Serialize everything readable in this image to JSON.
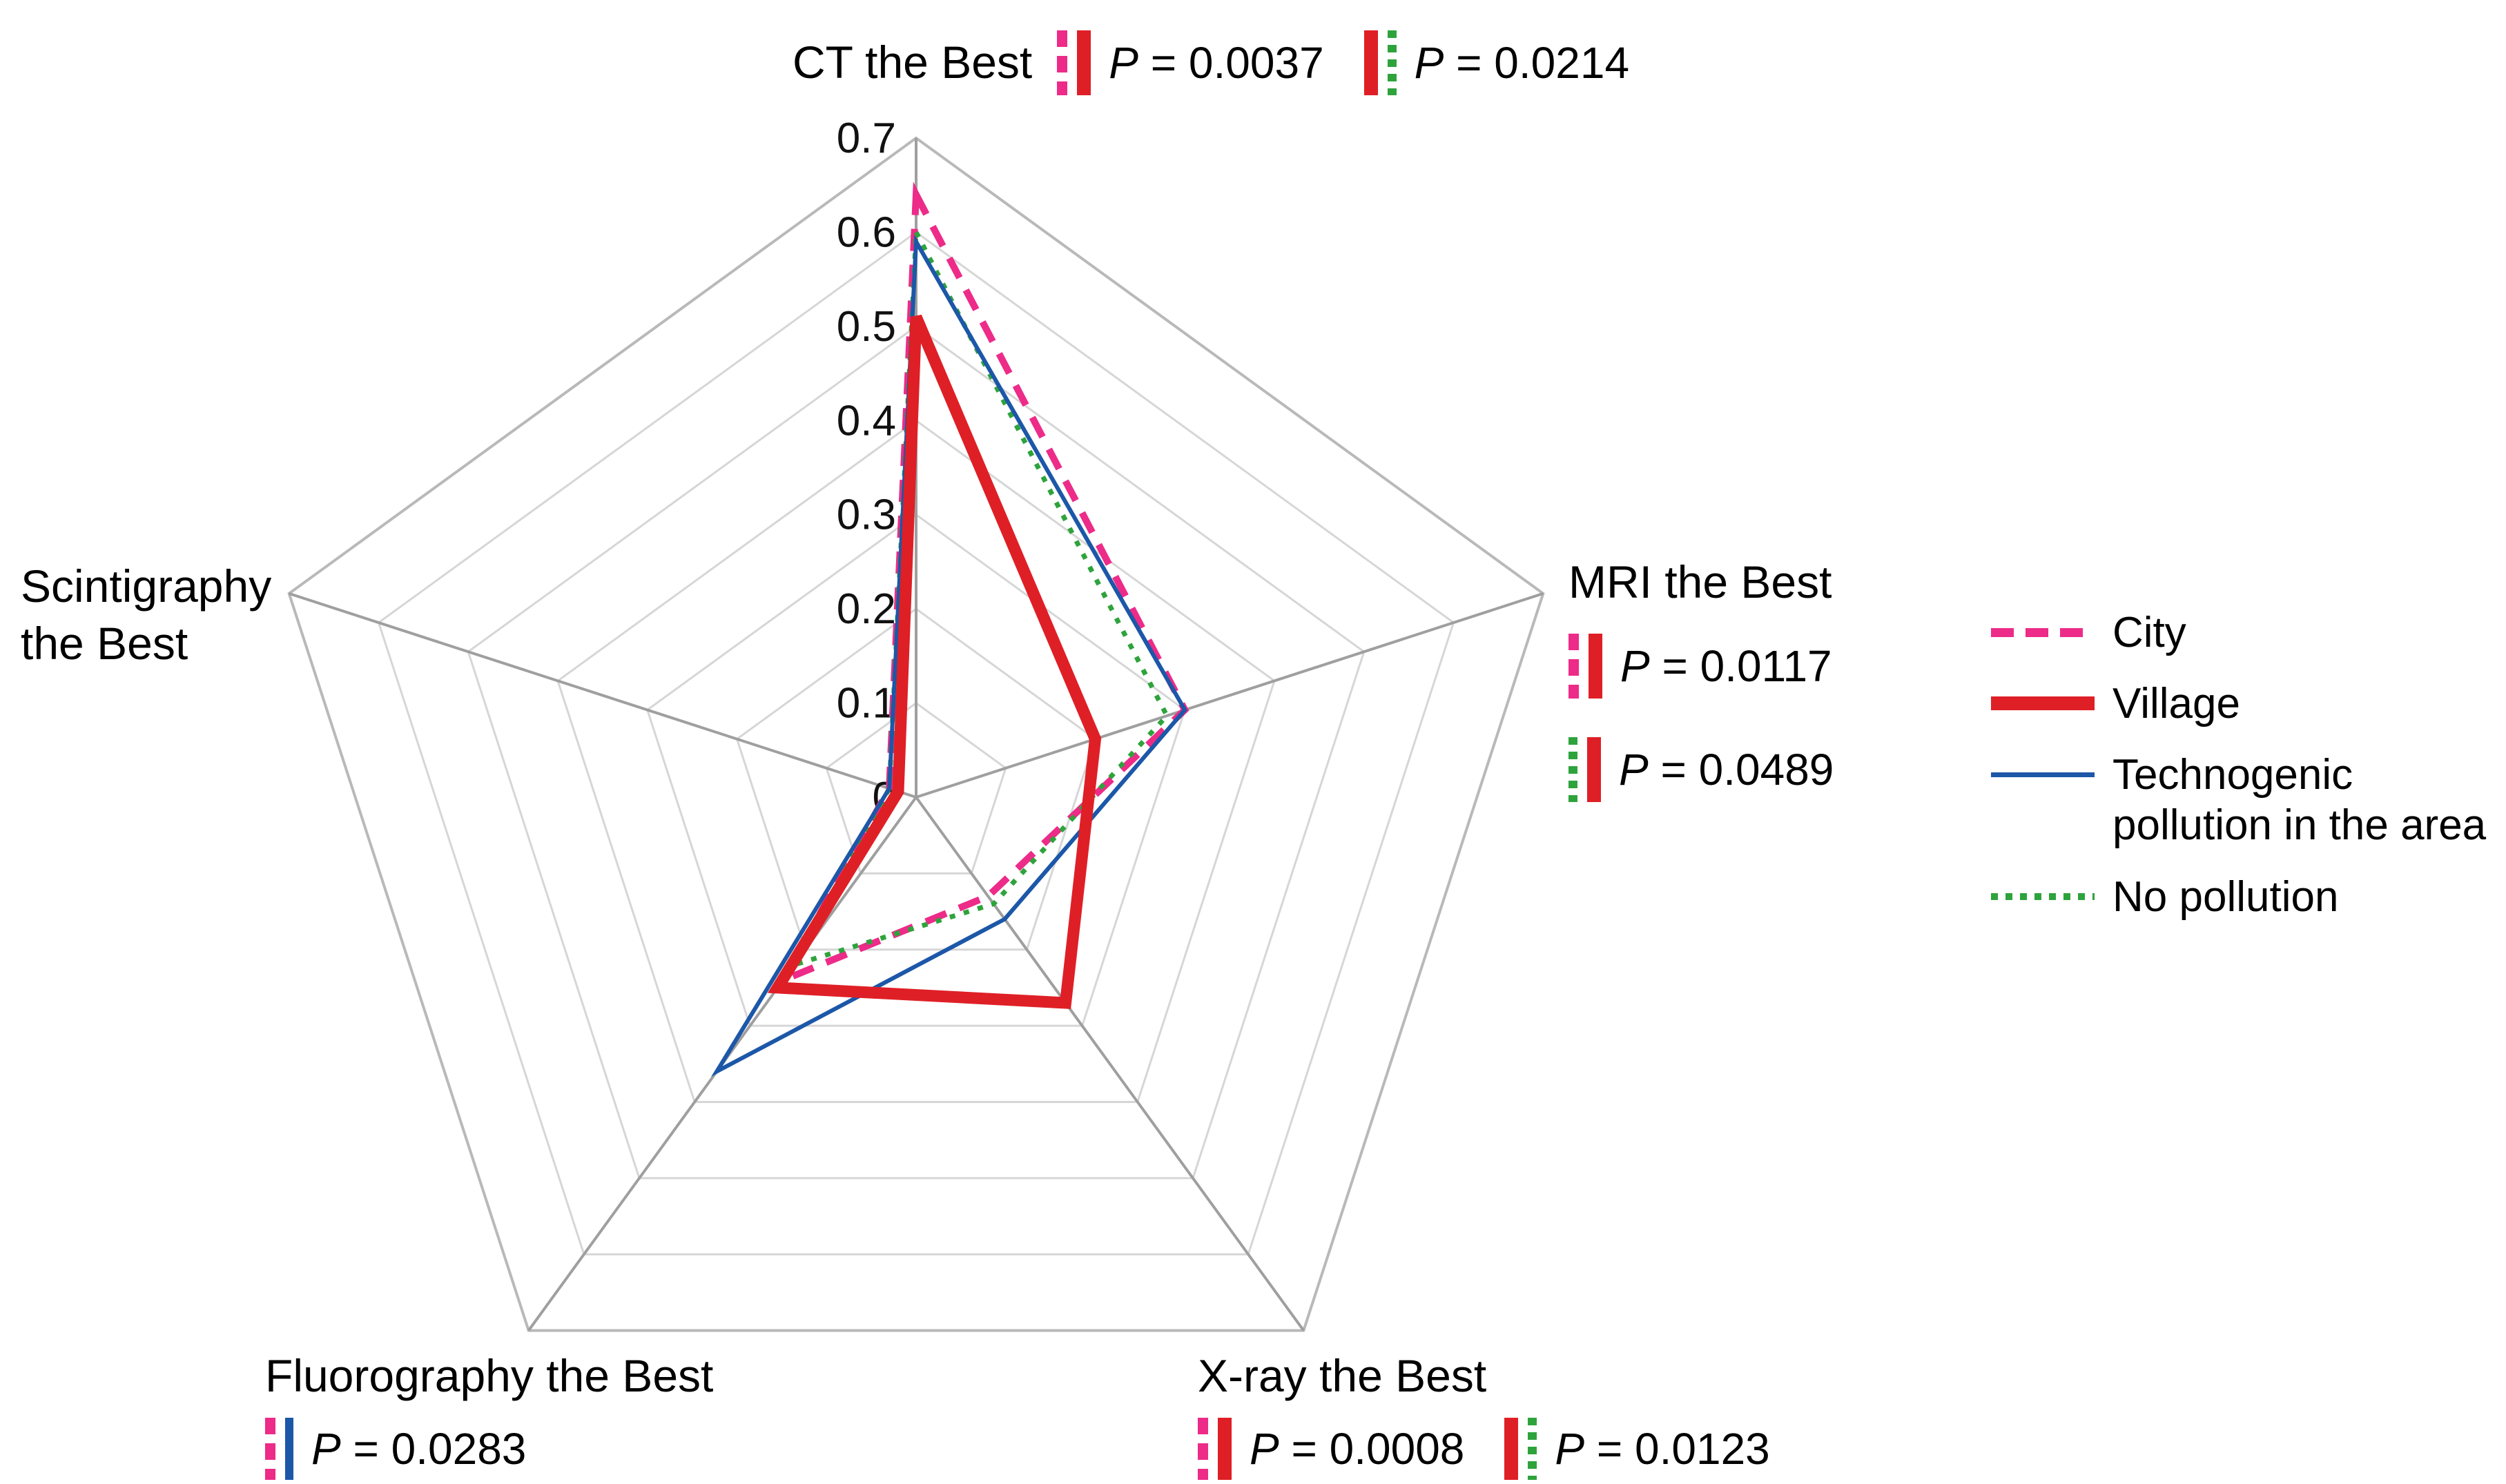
{
  "chart_data": {
    "type": "radar",
    "title": "",
    "categories": [
      "CT the Best",
      "MRI the Best",
      "X-ray the Best",
      "Fluorography the Best",
      "Scintigraphy the Best"
    ],
    "rmin": 0,
    "rmax": 0.7,
    "grid_rings": 7,
    "tick_labels": [
      "0",
      "0.1",
      "0.2",
      "0.3",
      "0.4",
      "0.5",
      "0.6",
      "0.7"
    ],
    "legend_position": "right",
    "series": [
      {
        "key": "city",
        "name": "City",
        "color": "#ED2B88",
        "style": "dashed",
        "width": 10,
        "values": [
          0.64,
          0.3,
          0.13,
          0.24,
          0.03
        ]
      },
      {
        "key": "village",
        "name": "Village",
        "color": "#DF1F26",
        "style": "solid",
        "width": 17,
        "values": [
          0.51,
          0.2,
          0.27,
          0.25,
          0.02
        ]
      },
      {
        "key": "tech",
        "name": "Technogenic pollution in the area",
        "color": "#1C57A8",
        "style": "solid",
        "width": 6,
        "values": [
          0.59,
          0.3,
          0.16,
          0.36,
          0.03
        ]
      },
      {
        "key": "nopoll",
        "name": "No pollution",
        "color": "#2EA33C",
        "style": "dotted",
        "width": 7,
        "values": [
          0.6,
          0.28,
          0.14,
          0.22,
          0.03
        ]
      }
    ],
    "draw_order": [
      0,
      3,
      2,
      1
    ]
  },
  "annotations": {
    "ct": {
      "pvals": [
        {
          "p": "P",
          "text": " = 0.0037",
          "pair": [
            "City",
            "Village"
          ]
        },
        {
          "p": "P",
          "text": " = 0.0214",
          "pair": [
            "Village",
            "No pollution"
          ]
        }
      ]
    },
    "mri": {
      "pvals": [
        {
          "p": "P",
          "text": " = 0.0117",
          "pair": [
            "City",
            "Village"
          ]
        },
        {
          "p": "P",
          "text": " = 0.0489",
          "pair": [
            "No pollution",
            "Village"
          ]
        }
      ]
    },
    "xray": {
      "pvals": [
        {
          "p": "P",
          "text": " = 0.0008",
          "pair": [
            "City",
            "Village"
          ]
        },
        {
          "p": "P",
          "text": " = 0.0123",
          "pair": [
            "Village",
            "No pollution"
          ]
        }
      ]
    },
    "fluorography": {
      "pvals": [
        {
          "p": "P",
          "text": " = 0.0283",
          "pair": [
            "City",
            "Technogenic pollution in the area"
          ]
        }
      ]
    }
  },
  "legend": {
    "items": [
      "City",
      "Village",
      "Technogenic\npollution in the area",
      "No pollution"
    ]
  }
}
